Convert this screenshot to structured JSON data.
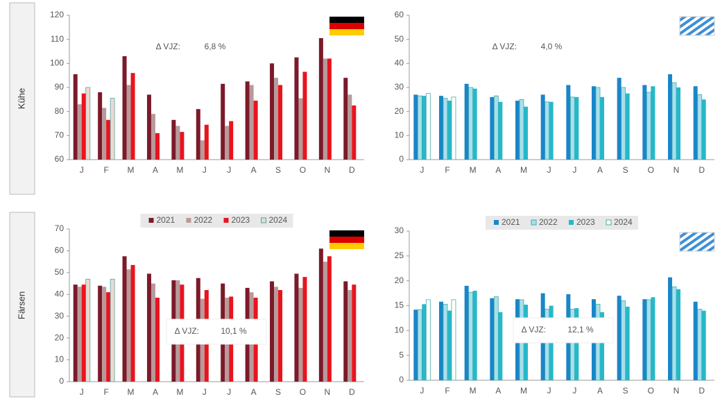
{
  "row_labels": [
    "Kühe",
    "Färsen"
  ],
  "chart_data": [
    {
      "type": "bar",
      "categories": [
        "J",
        "F",
        "M",
        "A",
        "M",
        "J",
        "J",
        "A",
        "S",
        "O",
        "N",
        "D"
      ],
      "series": [
        {
          "color": "#7b1a2a",
          "values": [
            95.5,
            88,
            103,
            87,
            76.5,
            81,
            91.5,
            92.5,
            100,
            102.5,
            110.5,
            94
          ]
        },
        {
          "color": "#b89a9a",
          "values": [
            83,
            81.5,
            91,
            79,
            74,
            68,
            74,
            91,
            94,
            85.5,
            102,
            87
          ]
        },
        {
          "color": "#e8141e",
          "values": [
            87.5,
            76.5,
            96,
            71,
            71.5,
            74.5,
            76,
            84.5,
            91,
            96.5,
            102,
            82.5
          ]
        },
        {
          "color": "#f0d8cf",
          "values": [
            90,
            85.5,
            null,
            null,
            null,
            null,
            null,
            null,
            null,
            null,
            null,
            null
          ]
        }
      ],
      "ylim": [
        60,
        120
      ],
      "yticks": [
        60,
        70,
        80,
        90,
        100,
        110,
        120
      ],
      "annotation": {
        "label": "Δ VJZ:",
        "value": "6,8 %"
      },
      "legend": false
    },
    {
      "type": "bar",
      "categories": [
        "J",
        "F",
        "M",
        "A",
        "M",
        "J",
        "J",
        "A",
        "S",
        "O",
        "N",
        "D"
      ],
      "series": [
        {
          "color": "#1a86c8",
          "values": [
            27,
            26.5,
            31.5,
            26,
            24.5,
            27,
            31,
            30.5,
            34,
            31,
            35.5,
            30.5
          ]
        },
        {
          "color": "#a8e0ec",
          "values": [
            26.5,
            25.5,
            30,
            26.5,
            25,
            24,
            26,
            30,
            30,
            28,
            32,
            27
          ]
        },
        {
          "color": "#27b8c8",
          "values": [
            26.5,
            24.5,
            29.5,
            24,
            22,
            24,
            26,
            26,
            27.5,
            30.5,
            30,
            25
          ]
        },
        {
          "color": "#ffffff",
          "values": [
            27.5,
            26,
            null,
            null,
            null,
            null,
            null,
            null,
            null,
            null,
            null,
            null
          ]
        }
      ],
      "ylim": [
        0,
        60
      ],
      "yticks": [
        0,
        10,
        20,
        30,
        40,
        50,
        60
      ],
      "annotation": {
        "label": "Δ VJZ:",
        "value": "4,0 %"
      },
      "legend": false
    },
    {
      "type": "bar",
      "categories": [
        "J",
        "F",
        "M",
        "A",
        "M",
        "J",
        "J",
        "A",
        "S",
        "O",
        "N",
        "D"
      ],
      "series": [
        {
          "name": "2021",
          "color": "#7b1a2a",
          "values": [
            44.5,
            44,
            57.5,
            49.5,
            46.5,
            47.5,
            45,
            43,
            46,
            49.5,
            61,
            46
          ]
        },
        {
          "name": "2022",
          "color": "#b89a9a",
          "values": [
            43.5,
            43.5,
            51.5,
            45,
            46.5,
            38,
            38.5,
            41,
            43.5,
            43,
            55,
            42
          ]
        },
        {
          "name": "2023",
          "color": "#e8141e",
          "values": [
            44.5,
            41,
            53.5,
            38.5,
            44.5,
            42,
            39,
            38.5,
            42,
            48,
            57.5,
            44.5
          ]
        },
        {
          "name": "2024",
          "color": "#f0d8cf",
          "values": [
            47,
            47,
            null,
            null,
            null,
            null,
            null,
            null,
            null,
            null,
            null,
            null
          ]
        }
      ],
      "ylim": [
        0,
        70
      ],
      "yticks": [
        0,
        10,
        20,
        30,
        40,
        50,
        60,
        70
      ],
      "annotation": {
        "label": "Δ VJZ:",
        "value": "10,1 %"
      },
      "legend": true
    },
    {
      "type": "bar",
      "categories": [
        "J",
        "F",
        "M",
        "A",
        "M",
        "J",
        "J",
        "A",
        "S",
        "O",
        "N",
        "D"
      ],
      "series": [
        {
          "name": "2021",
          "color": "#1a86c8",
          "values": [
            14.2,
            15.8,
            19,
            16.5,
            16.3,
            17.5,
            17.3,
            16.3,
            17,
            16.3,
            20.7,
            15.8
          ]
        },
        {
          "name": "2022",
          "color": "#a8e0ec",
          "values": [
            14.2,
            15.3,
            17.7,
            16.8,
            16.2,
            14.3,
            14.3,
            15.3,
            16,
            16.2,
            18.8,
            14.3
          ]
        },
        {
          "name": "2023",
          "color": "#27b8c8",
          "values": [
            15.3,
            14,
            18,
            13.7,
            15.2,
            15,
            14.5,
            13.7,
            14.8,
            16.7,
            18.3,
            14
          ]
        },
        {
          "name": "2024",
          "color": "#ffffff",
          "values": [
            16.2,
            16.2,
            null,
            null,
            null,
            null,
            null,
            null,
            null,
            null,
            null,
            null
          ]
        }
      ],
      "ylim": [
        0,
        30
      ],
      "yticks": [
        0,
        5,
        10,
        15,
        20,
        25,
        30
      ],
      "annotation": {
        "label": "Δ VJZ:",
        "value": "12,1 %"
      },
      "legend": true
    }
  ]
}
